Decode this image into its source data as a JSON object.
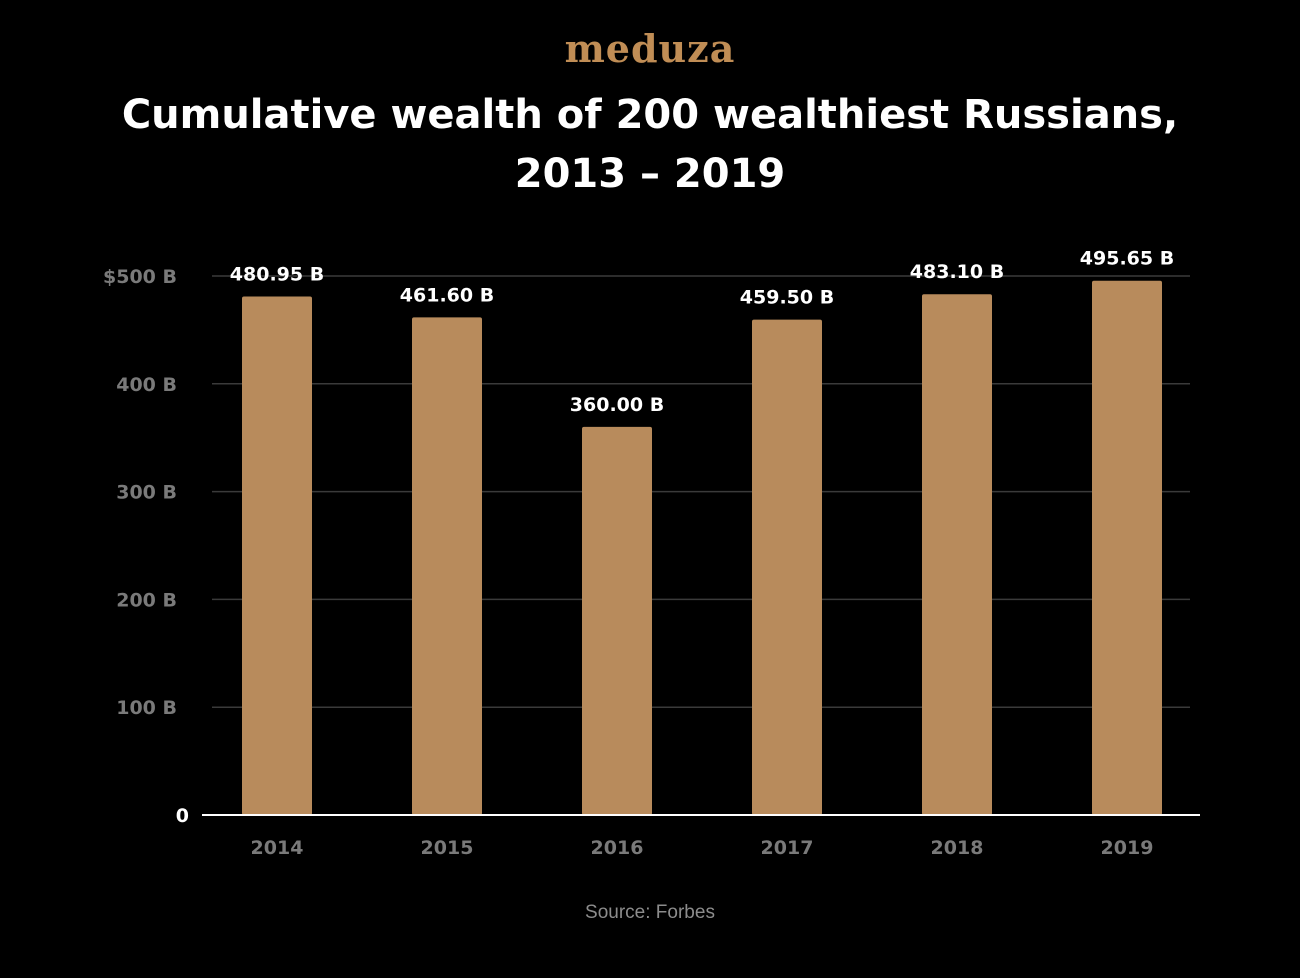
{
  "logo": "meduza",
  "title_line1": "Cumulative wealth of 200 wealthiest Russians,",
  "title_line2": "2013 – 2019",
  "source": "Source: Forbes",
  "colors": {
    "background": "#000000",
    "bar": "#b88b5c",
    "logo": "#c08d55",
    "gridline": "#3a3a3a",
    "tick_label": "#7a7a7a",
    "baseline": "#ffffff"
  },
  "chart_data": {
    "type": "bar",
    "categories": [
      "2014",
      "2015",
      "2016",
      "2017",
      "2018",
      "2019"
    ],
    "values": [
      480.95,
      461.6,
      360.0,
      459.5,
      483.1,
      495.65
    ],
    "data_labels": [
      "480.95 B",
      "461.60 B",
      "360.00 B",
      "459.50 B",
      "483.10 B",
      "495.65 B"
    ],
    "y_ticks": [
      0,
      100,
      200,
      300,
      400,
      500
    ],
    "y_tick_labels": [
      "0",
      "100 B",
      "200 B",
      "300 B",
      "400 B",
      "$500 B"
    ],
    "ylim": [
      0,
      500
    ],
    "grid": true,
    "legend": "none"
  }
}
